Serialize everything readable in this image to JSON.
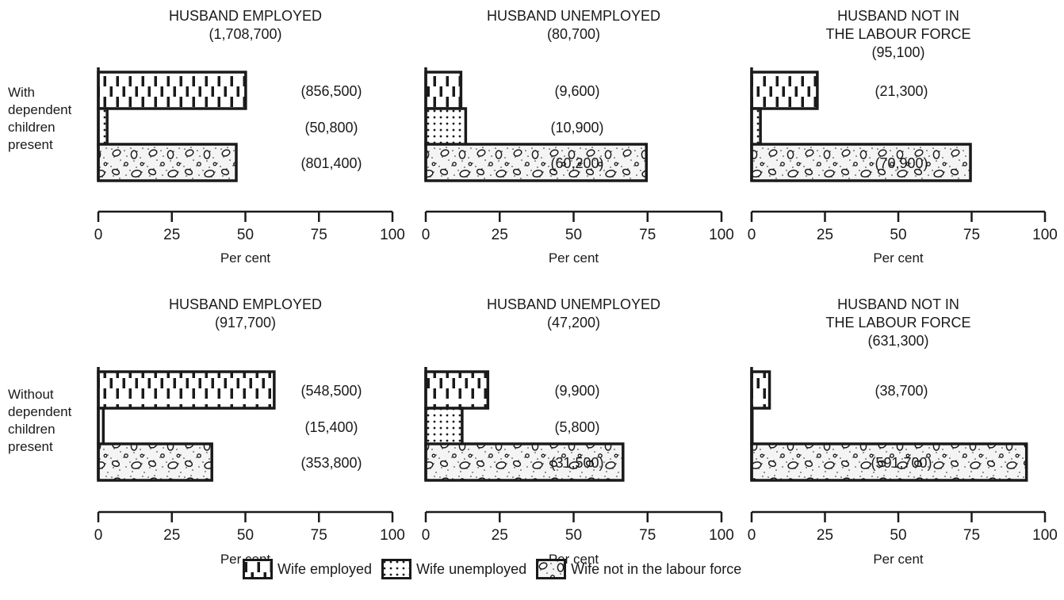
{
  "row_labels": [
    "With\ndependent\nchildren\npresent",
    "Without\ndependent\nchildren\npresent"
  ],
  "legend": {
    "employed": "Wife employed",
    "unemployed": "Wife unemployed",
    "nilf": "Wife not in the labour force"
  },
  "chart_data": [
    {
      "type": "bar",
      "orientation": "horizontal",
      "row": "With dependent children present",
      "title": "HUSBAND EMPLOYED\n(1,708,700)",
      "xlabel": "Per cent",
      "xlim": [
        0,
        100
      ],
      "x_ticks": [
        "0",
        "25",
        "50",
        "75",
        "100"
      ],
      "categories": [
        "Wife employed",
        "Wife unemployed",
        "Wife not in the labour force"
      ],
      "values": [
        50.1,
        3.0,
        46.9
      ],
      "data_labels": [
        "(856,500)",
        "(50,800)",
        "(801,400)"
      ]
    },
    {
      "type": "bar",
      "orientation": "horizontal",
      "row": "With dependent children present",
      "title": "HUSBAND UNEMPLOYED\n(80,700)",
      "xlabel": "Per cent",
      "xlim": [
        0,
        100
      ],
      "x_ticks": [
        "0",
        "25",
        "50",
        "75",
        "100"
      ],
      "categories": [
        "Wife employed",
        "Wife unemployed",
        "Wife not in the labour force"
      ],
      "values": [
        11.9,
        13.5,
        74.6
      ],
      "data_labels": [
        "(9,600)",
        "(10,900)",
        "(60,200)"
      ]
    },
    {
      "type": "bar",
      "orientation": "horizontal",
      "row": "With dependent children present",
      "title": "HUSBAND NOT IN\nTHE LABOUR FORCE\n(95,100)",
      "xlabel": "Per cent",
      "xlim": [
        0,
        100
      ],
      "x_ticks": [
        "0",
        "25",
        "50",
        "75",
        "100"
      ],
      "categories": [
        "Wife employed",
        "Wife unemployed",
        "Wife not in the labour force"
      ],
      "values": [
        22.4,
        3.0,
        74.6
      ],
      "data_labels": [
        "(21,300)",
        "",
        "(70,900)"
      ]
    },
    {
      "type": "bar",
      "orientation": "horizontal",
      "row": "Without dependent children present",
      "title": "HUSBAND EMPLOYED\n(917,700)",
      "xlabel": "Per cent",
      "xlim": [
        0,
        100
      ],
      "x_ticks": [
        "0",
        "25",
        "50",
        "75",
        "100"
      ],
      "categories": [
        "Wife employed",
        "Wife unemployed",
        "Wife not in the labour force"
      ],
      "values": [
        59.8,
        1.7,
        38.6
      ],
      "data_labels": [
        "(548,500)",
        "(15,400)",
        "(353,800)"
      ]
    },
    {
      "type": "bar",
      "orientation": "horizontal",
      "row": "Without dependent children present",
      "title": "HUSBAND UNEMPLOYED\n(47,200)",
      "xlabel": "Per cent",
      "xlim": [
        0,
        100
      ],
      "x_ticks": [
        "0",
        "25",
        "50",
        "75",
        "100"
      ],
      "categories": [
        "Wife employed",
        "Wife unemployed",
        "Wife not in the labour force"
      ],
      "values": [
        21.0,
        12.3,
        66.7
      ],
      "data_labels": [
        "(9,900)",
        "(5,800)",
        "(31,500)"
      ]
    },
    {
      "type": "bar",
      "orientation": "horizontal",
      "row": "Without dependent children present",
      "title": "HUSBAND NOT IN\nTHE LABOUR FORCE\n(631,300)",
      "xlabel": "Per cent",
      "xlim": [
        0,
        100
      ],
      "x_ticks": [
        "0",
        "25",
        "50",
        "75",
        "100"
      ],
      "categories": [
        "Wife employed",
        "Wife unemployed",
        "Wife not in the labour force"
      ],
      "values": [
        6.1,
        0.2,
        93.7
      ],
      "data_labels": [
        "(38,700)",
        "",
        "(591,700)"
      ]
    }
  ]
}
